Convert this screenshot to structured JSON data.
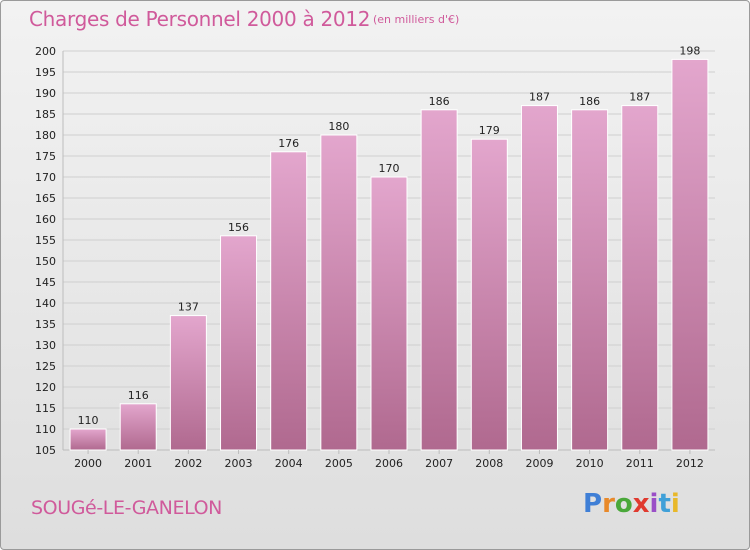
{
  "chart_data": {
    "type": "bar",
    "title": "Charges de Personnel 2000 à 2012",
    "subtitle": "(en milliers d'€)",
    "categories": [
      "2000",
      "2001",
      "2002",
      "2003",
      "2004",
      "2005",
      "2006",
      "2007",
      "2008",
      "2009",
      "2010",
      "2011",
      "2012"
    ],
    "values": [
      110,
      116,
      137,
      156,
      176,
      180,
      170,
      186,
      179,
      187,
      186,
      187,
      198
    ],
    "value_labels": [
      "110",
      "116",
      "137",
      "156",
      "176",
      "180",
      "170",
      "186",
      "179",
      "187",
      "186",
      "187",
      "198"
    ],
    "ylim": [
      105,
      200
    ],
    "yticks": [
      105,
      110,
      115,
      120,
      125,
      130,
      135,
      140,
      145,
      150,
      155,
      160,
      165,
      170,
      175,
      180,
      185,
      190,
      195,
      200
    ],
    "grid": true,
    "xlabel": "",
    "ylabel": ""
  },
  "footer": {
    "commune": "SOUGé-LE-GANELON"
  },
  "logo": {
    "text": "Proxiti",
    "letters": [
      "P",
      "r",
      "o",
      "x",
      "i",
      "t",
      "i"
    ],
    "letter_colors": [
      "#3f7fd6",
      "#e8892a",
      "#4aa83a",
      "#e03a2f",
      "#9a4fc7",
      "#3fa0d8",
      "#e8b82a"
    ]
  },
  "colors": {
    "accent": "#d05a9b",
    "bar_top": "#e3a6cd",
    "bar_bottom": "#b0698f",
    "bar_stroke": "#ffffff"
  }
}
